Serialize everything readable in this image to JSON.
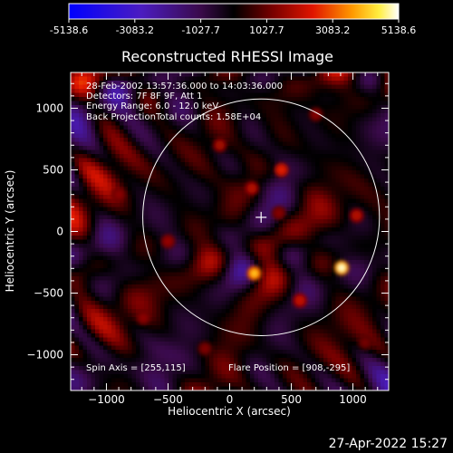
{
  "colorbar": {
    "ticks": [
      "-5138.6",
      "-3083.2",
      "-1027.7",
      "1027.7",
      "3083.2",
      "5138.6"
    ],
    "tick_values": [
      -5138.6,
      -3083.2,
      -1027.7,
      1027.7,
      3083.2,
      5138.6
    ],
    "range": [
      -5138.6,
      5138.6
    ],
    "colormap": "blue-purple-black-red-orange-yellow-white"
  },
  "annotations": {
    "time_range": "28-Feb-2002 13:57:36.000 to 14:03:36.000",
    "detectors": "Detectors: 7F 8F 9F, Att 1",
    "energy_range": "Energy Range: 6.0 - 12.0 keV",
    "method": "Back Projection",
    "total_counts": "Total counts: 1.58E+04",
    "spin_axis": "Spin Axis = [255,115]",
    "flare_position": "Flare Position = [908,-295]"
  },
  "footer": {
    "timestamp": "27-Apr-2022 15:27"
  },
  "chart_data": {
    "type": "heatmap",
    "title": "Reconstructed RHESSI Image",
    "xlabel": "Heliocentric X (arcsec)",
    "ylabel": "Heliocentric Y (arcsec)",
    "xlim": [
      -1290,
      1290
    ],
    "ylim": [
      -1290,
      1290
    ],
    "xticks": [
      -1000,
      -500,
      0,
      500,
      1000
    ],
    "yticks": [
      -1000,
      -500,
      0,
      500,
      1000
    ],
    "xtick_labels": [
      "−1000",
      "−500",
      "0",
      "500",
      "1000"
    ],
    "ytick_labels": [
      "−1000",
      "−500",
      "0",
      "500",
      "1000"
    ],
    "spin_axis": [
      255,
      115
    ],
    "circle_center": [
      255,
      115
    ],
    "circle_radius": 960,
    "bright_sources": [
      {
        "x": 908,
        "y": -295,
        "value": 5100
      },
      {
        "x": 200,
        "y": -340,
        "value": 4200
      },
      {
        "x": 420,
        "y": 500,
        "value": 2600
      },
      {
        "x": 570,
        "y": -560,
        "value": 2200
      },
      {
        "x": 180,
        "y": 350,
        "value": 2000
      },
      {
        "x": 1030,
        "y": 130,
        "value": 2000
      },
      {
        "x": -80,
        "y": 700,
        "value": 1800
      },
      {
        "x": -500,
        "y": -80,
        "value": 1600
      },
      {
        "x": -900,
        "y": 300,
        "value": 1500
      },
      {
        "x": -700,
        "y": -700,
        "value": 1500
      },
      {
        "x": 700,
        "y": 950,
        "value": 1400
      },
      {
        "x": 400,
        "y": 150,
        "value": 1400
      },
      {
        "x": -200,
        "y": -950,
        "value": 1300
      },
      {
        "x": 1100,
        "y": -900,
        "value": 1200
      }
    ]
  }
}
